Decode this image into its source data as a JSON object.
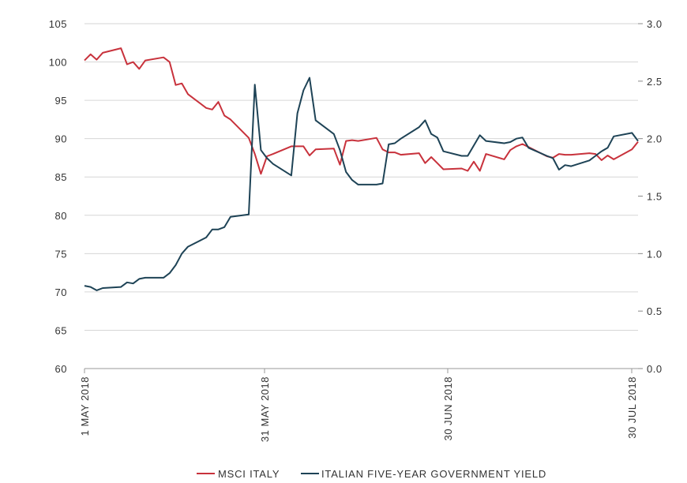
{
  "chart_data": {
    "type": "line",
    "x_ticks": [
      "1 MAY 2018",
      "31 MAY 2018",
      "30 JUN 2018",
      "30 JUL 2018"
    ],
    "y_left": {
      "min": 60,
      "max": 105,
      "ticks": [
        "60",
        "65",
        "70",
        "75",
        "80",
        "85",
        "90",
        "95",
        "100",
        "105"
      ]
    },
    "y_right": {
      "min": 0.0,
      "max": 3.0,
      "ticks": [
        "0.0",
        "0.5",
        "1.0",
        "1.5",
        "2.0",
        "2.5",
        "3.0"
      ]
    },
    "grid": "horizontal",
    "legend": "bottom",
    "series": [
      {
        "name": "MSCI ITALY",
        "axis": "left",
        "color": "#c8323c",
        "x": [
          "2018-05-01",
          "2018-05-02",
          "2018-05-03",
          "2018-05-04",
          "2018-05-07",
          "2018-05-08",
          "2018-05-09",
          "2018-05-10",
          "2018-05-11",
          "2018-05-14",
          "2018-05-15",
          "2018-05-16",
          "2018-05-17",
          "2018-05-18",
          "2018-05-21",
          "2018-05-22",
          "2018-05-23",
          "2018-05-24",
          "2018-05-25",
          "2018-05-28",
          "2018-05-29",
          "2018-05-30",
          "2018-05-31",
          "2018-06-01",
          "2018-06-04",
          "2018-06-05",
          "2018-06-06",
          "2018-06-07",
          "2018-06-08",
          "2018-06-11",
          "2018-06-12",
          "2018-06-13",
          "2018-06-14",
          "2018-06-15",
          "2018-06-18",
          "2018-06-19",
          "2018-06-20",
          "2018-06-21",
          "2018-06-22",
          "2018-06-25",
          "2018-06-26",
          "2018-06-27",
          "2018-06-28",
          "2018-06-29",
          "2018-07-02",
          "2018-07-03",
          "2018-07-04",
          "2018-07-05",
          "2018-07-06",
          "2018-07-09",
          "2018-07-10",
          "2018-07-11",
          "2018-07-12",
          "2018-07-13",
          "2018-07-16",
          "2018-07-17",
          "2018-07-18",
          "2018-07-19",
          "2018-07-20",
          "2018-07-23",
          "2018-07-24",
          "2018-07-25",
          "2018-07-26",
          "2018-07-27",
          "2018-07-30",
          "2018-07-31"
        ],
        "values": [
          100.2,
          101.0,
          100.3,
          101.2,
          101.8,
          99.7,
          100.0,
          99.1,
          100.2,
          100.6,
          100.0,
          97.0,
          97.2,
          95.8,
          94.0,
          93.8,
          94.8,
          93.0,
          92.5,
          90.1,
          88.0,
          85.4,
          87.7,
          88.0,
          89.0,
          89.0,
          89.0,
          87.8,
          88.6,
          88.7,
          86.6,
          89.7,
          89.8,
          89.7,
          90.1,
          88.6,
          88.2,
          88.2,
          87.9,
          88.1,
          86.8,
          87.6,
          86.8,
          86.0,
          86.1,
          85.8,
          87.0,
          85.8,
          88.0,
          87.3,
          88.5,
          89.0,
          89.3,
          88.9,
          87.7,
          87.5,
          88.0,
          87.9,
          87.9,
          88.1,
          88.0,
          87.2,
          87.8,
          87.3,
          88.6,
          89.6
        ]
      },
      {
        "name": "ITALIAN FIVE-YEAR GOVERNMENT YIELD",
        "axis": "right",
        "color": "#1e4356",
        "x": [
          "2018-05-01",
          "2018-05-02",
          "2018-05-03",
          "2018-05-04",
          "2018-05-07",
          "2018-05-08",
          "2018-05-09",
          "2018-05-10",
          "2018-05-11",
          "2018-05-14",
          "2018-05-15",
          "2018-05-16",
          "2018-05-17",
          "2018-05-18",
          "2018-05-21",
          "2018-05-22",
          "2018-05-23",
          "2018-05-24",
          "2018-05-25",
          "2018-05-28",
          "2018-05-29",
          "2018-05-30",
          "2018-05-31",
          "2018-06-01",
          "2018-06-04",
          "2018-06-05",
          "2018-06-06",
          "2018-06-07",
          "2018-06-08",
          "2018-06-11",
          "2018-06-12",
          "2018-06-13",
          "2018-06-14",
          "2018-06-15",
          "2018-06-18",
          "2018-06-19",
          "2018-06-20",
          "2018-06-21",
          "2018-06-22",
          "2018-06-25",
          "2018-06-26",
          "2018-06-27",
          "2018-06-28",
          "2018-06-29",
          "2018-07-02",
          "2018-07-03",
          "2018-07-04",
          "2018-07-05",
          "2018-07-06",
          "2018-07-09",
          "2018-07-10",
          "2018-07-11",
          "2018-07-12",
          "2018-07-13",
          "2018-07-16",
          "2018-07-17",
          "2018-07-18",
          "2018-07-19",
          "2018-07-20",
          "2018-07-23",
          "2018-07-24",
          "2018-07-25",
          "2018-07-26",
          "2018-07-27",
          "2018-07-30",
          "2018-07-31"
        ],
        "values": [
          0.72,
          0.71,
          0.68,
          0.7,
          0.71,
          0.75,
          0.74,
          0.78,
          0.79,
          0.79,
          0.83,
          0.9,
          1.0,
          1.06,
          1.14,
          1.21,
          1.21,
          1.23,
          1.32,
          1.34,
          2.47,
          1.9,
          1.83,
          1.78,
          1.68,
          2.22,
          2.42,
          2.53,
          2.16,
          2.04,
          1.9,
          1.71,
          1.64,
          1.6,
          1.6,
          1.61,
          1.95,
          1.96,
          2.0,
          2.1,
          2.16,
          2.04,
          2.01,
          1.89,
          1.85,
          1.85,
          1.94,
          2.03,
          1.98,
          1.96,
          1.97,
          2.0,
          2.01,
          1.92,
          1.85,
          1.83,
          1.73,
          1.77,
          1.76,
          1.81,
          1.85,
          1.89,
          1.92,
          2.02,
          2.05,
          1.98
        ]
      }
    ]
  }
}
